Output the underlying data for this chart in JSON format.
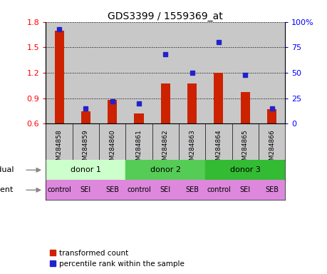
{
  "title": "GDS3399 / 1559369_at",
  "samples": [
    "GSM284858",
    "GSM284859",
    "GSM284860",
    "GSM284861",
    "GSM284862",
    "GSM284863",
    "GSM284864",
    "GSM284865",
    "GSM284866"
  ],
  "red_values": [
    1.7,
    0.75,
    0.88,
    0.72,
    1.07,
    1.07,
    1.2,
    0.97,
    0.77
  ],
  "blue_values": [
    93,
    15,
    22,
    20,
    68,
    50,
    80,
    48,
    15
  ],
  "ylim_left": [
    0.6,
    1.8
  ],
  "ylim_right": [
    0,
    100
  ],
  "yticks_left": [
    0.6,
    0.9,
    1.2,
    1.5,
    1.8
  ],
  "yticks_right": [
    0,
    25,
    50,
    75,
    100
  ],
  "bar_color": "#cc2200",
  "dot_color": "#2222cc",
  "background_bar": "#c8c8c8",
  "donors": [
    {
      "label": "donor 1",
      "start": 0,
      "end": 3,
      "color": "#ccffcc"
    },
    {
      "label": "donor 2",
      "start": 3,
      "end": 6,
      "color": "#55cc55"
    },
    {
      "label": "donor 3",
      "start": 6,
      "end": 9,
      "color": "#33bb33"
    }
  ],
  "agents": [
    "control",
    "SEI",
    "SEB",
    "control",
    "SEI",
    "SEB",
    "control",
    "SEI",
    "SEB"
  ],
  "agent_color": "#dd88dd",
  "legend_red": "transformed count",
  "legend_blue": "percentile rank within the sample"
}
